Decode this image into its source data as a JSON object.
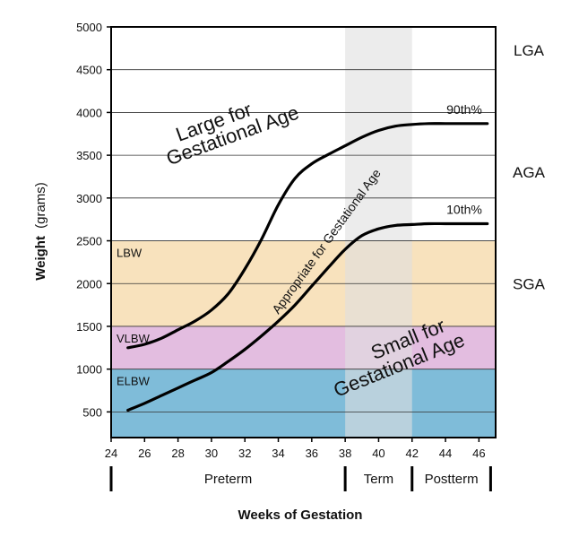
{
  "chart_data": {
    "type": "line",
    "xlabel": "Weeks of Gestation",
    "ylabel_bold": "Weight",
    "ylabel_unit": "(grams)",
    "xlim": [
      24,
      47
    ],
    "ylim": [
      200,
      5000
    ],
    "x_ticks": [
      24,
      26,
      28,
      30,
      32,
      34,
      36,
      38,
      40,
      42,
      44,
      46
    ],
    "y_ticks": [
      500,
      1000,
      1500,
      2000,
      2500,
      3000,
      3500,
      4000,
      4500,
      5000
    ],
    "grid": "horizontal",
    "term_shade": {
      "from": 38,
      "to": 42,
      "color": "#e0e0e0"
    },
    "bands": [
      {
        "label": "ELBW",
        "from": 200,
        "to": 1000,
        "color": "#7fbcd9"
      },
      {
        "label": "VLBW",
        "from": 1000,
        "to": 1500,
        "color": "#e3bde0"
      },
      {
        "label": "LBW",
        "from": 1500,
        "to": 2500,
        "color": "#f8e2bd"
      }
    ],
    "series": [
      {
        "name": "90th%",
        "x": [
          25,
          26,
          27,
          28,
          29,
          30,
          31,
          32,
          33,
          34,
          35,
          36,
          37,
          38,
          39,
          40,
          41,
          42,
          43,
          44,
          45,
          46.5
        ],
        "values": [
          1250,
          1290,
          1360,
          1460,
          1560,
          1690,
          1880,
          2170,
          2520,
          2920,
          3230,
          3400,
          3510,
          3610,
          3710,
          3790,
          3840,
          3860,
          3870,
          3870,
          3870,
          3870
        ]
      },
      {
        "name": "10th%",
        "x": [
          25,
          26,
          27,
          28,
          29,
          30,
          31,
          32,
          33,
          34,
          35,
          36,
          37,
          38,
          39,
          40,
          41,
          42,
          43,
          44,
          45,
          46.5
        ],
        "values": [
          520,
          600,
          690,
          780,
          870,
          960,
          1090,
          1230,
          1390,
          1560,
          1750,
          1970,
          2190,
          2400,
          2560,
          2640,
          2680,
          2690,
          2700,
          2700,
          2700,
          2700
        ]
      }
    ],
    "size_categories": [
      {
        "label": "LGA",
        "y": 4730
      },
      {
        "label": "AGA",
        "y": 3300
      },
      {
        "label": "SGA",
        "y": 2000
      }
    ],
    "periods": [
      {
        "label": "Preterm",
        "from": 24,
        "to": 38
      },
      {
        "label": "Term",
        "from": 38,
        "to": 42
      },
      {
        "label": "Postterm",
        "from": 42,
        "to": 47
      }
    ],
    "annotations": {
      "lga_line1": "Large for",
      "lga_line2": "Gestational Age",
      "aga": "Appropriate for Gestational Age",
      "sga_line1": "Small for",
      "sga_line2": "Gestational Age"
    }
  }
}
